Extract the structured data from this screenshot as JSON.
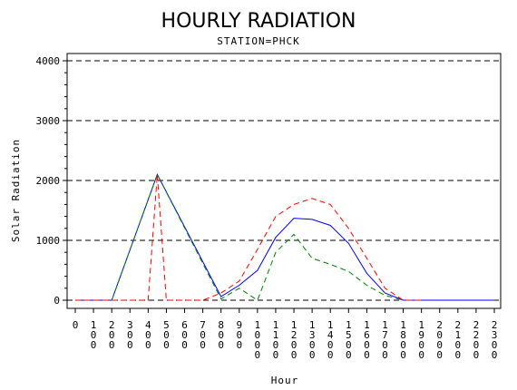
{
  "chart_data": {
    "type": "line",
    "title": "HOURLY RADIATION",
    "subtitle": "STATION=PHCK",
    "xlabel": "Hour",
    "ylabel": "Solar Radiation",
    "xlim": [
      0,
      2300
    ],
    "ylim": [
      0,
      4000
    ],
    "x_ticks": [
      "0",
      "100",
      "200",
      "300",
      "400",
      "500",
      "600",
      "700",
      "800",
      "900",
      "1000",
      "1100",
      "1200",
      "1300",
      "1400",
      "1500",
      "1600",
      "1700",
      "1800",
      "1900",
      "2000",
      "2100",
      "2200",
      "2300"
    ],
    "y_ticks": [
      "0",
      "1000",
      "2000",
      "3000",
      "4000"
    ],
    "grid": "horizontal dashed",
    "legend": "none",
    "series": [
      {
        "color": "#0000ff",
        "dash": "solid",
        "x": [
          0,
          100,
          200,
          450,
          800,
          900,
          1000,
          1100,
          1200,
          1300,
          1400,
          1500,
          1600,
          1700,
          1800,
          1900,
          2000,
          2100,
          2200,
          2300
        ],
        "y": [
          0,
          0,
          0,
          2100,
          60,
          250,
          500,
          1050,
          1370,
          1350,
          1250,
          950,
          450,
          120,
          0,
          0,
          0,
          0,
          0,
          0
        ]
      },
      {
        "color": "#ff0000",
        "dash": "dashed",
        "x": [
          0,
          100,
          200,
          300,
          400,
          450,
          500,
          600,
          700,
          800,
          900,
          1000,
          1100,
          1200,
          1300,
          1400,
          1500,
          1600,
          1700,
          1800,
          1900
        ],
        "y": [
          0,
          0,
          0,
          0,
          0,
          2100,
          0,
          0,
          0,
          120,
          320,
          850,
          1400,
          1600,
          1700,
          1600,
          1200,
          700,
          200,
          0,
          0
        ]
      },
      {
        "color": "#008000",
        "dash": "dashed",
        "x": [
          200,
          450,
          800,
          900,
          1000,
          1100,
          1200,
          1300,
          1400,
          1500,
          1600,
          1700,
          1800
        ],
        "y": [
          0,
          2100,
          20,
          200,
          0,
          800,
          1100,
          700,
          600,
          480,
          250,
          80,
          0
        ]
      }
    ]
  }
}
